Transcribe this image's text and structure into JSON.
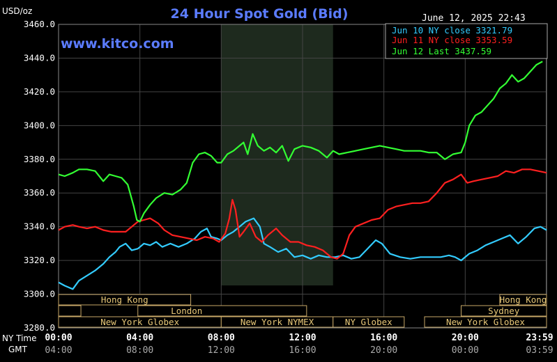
{
  "header": {
    "unit_label": "USD/oz",
    "title": "24 Hour Spot Gold (Bid)",
    "timestamp": "June 12, 2025 22:43",
    "watermark": "www.kitco.com"
  },
  "legend": [
    {
      "text": "Jun 10 NY close 3321.79",
      "color": "#33ccff"
    },
    {
      "text": "Jun 11 NY close 3353.59",
      "color": "#ff2020"
    },
    {
      "text": "Jun 12 Last 3437.59",
      "color": "#33ff33"
    }
  ],
  "sessions": [
    {
      "label": "Hong Kong",
      "row": 0,
      "start": 0,
      "end": 6.5,
      "show_label": true
    },
    {
      "label": "Hong Kong",
      "row": 0,
      "start": 21.7,
      "end": 24,
      "show_label": true
    },
    {
      "label": "",
      "row": 1,
      "start": 0,
      "end": 1.1,
      "show_label": false
    },
    {
      "label": "London",
      "row": 1,
      "start": 3.9,
      "end": 12.2,
      "show_label": true
    },
    {
      "label": "Sydney",
      "row": 1,
      "start": 19.8,
      "end": 24,
      "show_label": true
    },
    {
      "label": "New York Globex",
      "row": 2,
      "start": 0,
      "end": 8,
      "show_label": true
    },
    {
      "label": "New York NYMEX",
      "row": 2,
      "start": 8,
      "end": 13.5,
      "show_label": true
    },
    {
      "label": "NY Globex",
      "row": 2,
      "start": 13.5,
      "end": 17,
      "show_label": true
    },
    {
      "label": "New York Globex",
      "row": 2,
      "start": 18,
      "end": 24,
      "show_label": true
    }
  ],
  "axis_row_labels": {
    "ny": "NY Time",
    "gmt": "GMT"
  },
  "chart_data": {
    "type": "line",
    "title": "24 Hour Spot Gold (Bid)",
    "ylabel": "USD/oz",
    "xlim": [
      0,
      24
    ],
    "ylim": [
      3280,
      3460
    ],
    "yticks": [
      3280,
      3300,
      3320,
      3340,
      3360,
      3380,
      3400,
      3420,
      3440,
      3460
    ],
    "ytick_labels": [
      "3280.0",
      "3300.0",
      "3320.0",
      "3340.0",
      "3360.0",
      "3380.0",
      "3400.0",
      "3420.0",
      "3440.0",
      "3460.0"
    ],
    "xticks": [
      0,
      4,
      8,
      12,
      16,
      20,
      23.983
    ],
    "xtick_labels_ny": [
      "00:00",
      "04:00",
      "08:00",
      "12:00",
      "16:00",
      "20:00",
      "23:59"
    ],
    "xtick_labels_gmt": [
      "04:00",
      "08:00",
      "12:00",
      "16:00",
      "20:00",
      "00:00",
      "03:59"
    ],
    "grid": true,
    "shaded_range": [
      8,
      13.5
    ],
    "series": [
      {
        "name": "Jun 10 NY close 3321.79",
        "color": "#33ccff",
        "x": [
          0,
          0.3,
          0.7,
          1.0,
          1.4,
          1.8,
          2.2,
          2.5,
          2.8,
          3.0,
          3.3,
          3.6,
          3.9,
          4.2,
          4.5,
          4.8,
          5.1,
          5.5,
          5.9,
          6.3,
          6.7,
          7.0,
          7.3,
          7.5,
          7.8,
          8.0,
          8.3,
          8.6,
          8.9,
          9.2,
          9.6,
          9.9,
          10.1,
          10.4,
          10.8,
          11.2,
          11.6,
          12.0,
          12.4,
          12.8,
          13.2,
          13.6,
          14.0,
          14.4,
          14.8,
          15.2,
          15.6,
          15.9,
          16.3,
          16.8,
          17.3,
          17.8,
          18.3,
          18.8,
          19.2,
          19.5,
          19.8,
          20.2,
          20.6,
          21.0,
          21.4,
          21.8,
          22.2,
          22.6,
          23.0,
          23.4,
          23.7,
          24.0
        ],
        "y": [
          3307,
          3305,
          3303,
          3308,
          3311,
          3314,
          3318,
          3322,
          3325,
          3328,
          3330,
          3326,
          3327,
          3330,
          3329,
          3331,
          3328,
          3330,
          3328,
          3330,
          3333,
          3337,
          3339,
          3334,
          3333,
          3332,
          3335,
          3337,
          3340,
          3343,
          3345,
          3340,
          3330,
          3328,
          3325,
          3327,
          3322,
          3323,
          3321,
          3323,
          3322,
          3322,
          3323,
          3321,
          3322,
          3327,
          3332,
          3330,
          3324,
          3322,
          3321,
          3322,
          3322,
          3322,
          3323,
          3322,
          3320,
          3324,
          3326,
          3329,
          3331,
          3333,
          3335,
          3330,
          3334,
          3339,
          3340,
          3338
        ]
      },
      {
        "name": "Jun 11 NY close 3353.59",
        "color": "#ff2020",
        "x": [
          0,
          0.3,
          0.7,
          1.0,
          1.4,
          1.8,
          2.2,
          2.6,
          3.0,
          3.3,
          3.6,
          3.9,
          4.2,
          4.5,
          4.9,
          5.2,
          5.6,
          6.0,
          6.4,
          6.8,
          7.2,
          7.6,
          7.9,
          8.2,
          8.4,
          8.55,
          8.7,
          8.9,
          9.1,
          9.4,
          9.7,
          10.0,
          10.3,
          10.7,
          11.0,
          11.4,
          11.8,
          12.2,
          12.6,
          13.0,
          13.4,
          13.7,
          14.0,
          14.3,
          14.6,
          15.0,
          15.4,
          15.8,
          16.2,
          16.6,
          17.0,
          17.4,
          17.8,
          18.2,
          18.6,
          19.0,
          19.4,
          19.8,
          20.1,
          20.4,
          20.8,
          21.2,
          21.6,
          22.0,
          22.4,
          22.8,
          23.2,
          23.6,
          24.0
        ],
        "y": [
          3338,
          3340,
          3341,
          3340,
          3339,
          3340,
          3338,
          3337,
          3337,
          3337,
          3340,
          3343,
          3344,
          3345,
          3342,
          3338,
          3335,
          3334,
          3333,
          3332,
          3334,
          3333,
          3331,
          3336,
          3345,
          3356,
          3350,
          3334,
          3337,
          3342,
          3334,
          3331,
          3335,
          3339,
          3335,
          3331,
          3331,
          3329,
          3328,
          3326,
          3322,
          3321,
          3324,
          3335,
          3340,
          3342,
          3344,
          3345,
          3350,
          3352,
          3353,
          3354,
          3354,
          3355,
          3360,
          3366,
          3368,
          3371,
          3366,
          3367,
          3368,
          3369,
          3370,
          3373,
          3372,
          3374,
          3374,
          3373,
          3372
        ]
      },
      {
        "name": "Jun 12 Last 3437.59",
        "color": "#33ff33",
        "x": [
          0,
          0.3,
          0.7,
          1.0,
          1.4,
          1.8,
          2.2,
          2.5,
          2.8,
          3.1,
          3.4,
          3.7,
          3.85,
          4.0,
          4.2,
          4.5,
          4.8,
          5.2,
          5.6,
          6.0,
          6.3,
          6.6,
          6.9,
          7.2,
          7.5,
          7.8,
          8.0,
          8.3,
          8.6,
          8.9,
          9.1,
          9.3,
          9.55,
          9.8,
          10.1,
          10.4,
          10.7,
          11.0,
          11.3,
          11.6,
          12.0,
          12.4,
          12.8,
          13.2,
          13.5,
          13.8,
          14.2,
          14.6,
          15.0,
          15.4,
          15.8,
          16.2,
          16.6,
          17.0,
          17.4,
          17.8,
          18.2,
          18.6,
          19.0,
          19.4,
          19.8,
          20.0,
          20.2,
          20.5,
          20.8,
          21.1,
          21.4,
          21.7,
          22.0,
          22.3,
          22.6,
          22.9,
          23.2,
          23.5,
          23.8
        ],
        "y": [
          3371,
          3370,
          3372,
          3374,
          3374,
          3373,
          3367,
          3371,
          3370,
          3369,
          3365,
          3352,
          3344,
          3343,
          3348,
          3353,
          3357,
          3360,
          3359,
          3362,
          3366,
          3378,
          3383,
          3384,
          3382,
          3378,
          3378,
          3383,
          3385,
          3388,
          3390,
          3383,
          3395,
          3388,
          3385,
          3387,
          3384,
          3388,
          3379,
          3386,
          3388,
          3387,
          3385,
          3381,
          3385,
          3383,
          3384,
          3385,
          3386,
          3387,
          3388,
          3387,
          3386,
          3385,
          3385,
          3385,
          3384,
          3384,
          3380,
          3383,
          3384,
          3390,
          3400,
          3406,
          3408,
          3412,
          3416,
          3422,
          3425,
          3430,
          3426,
          3428,
          3432,
          3436,
          3438
        ]
      }
    ]
  }
}
